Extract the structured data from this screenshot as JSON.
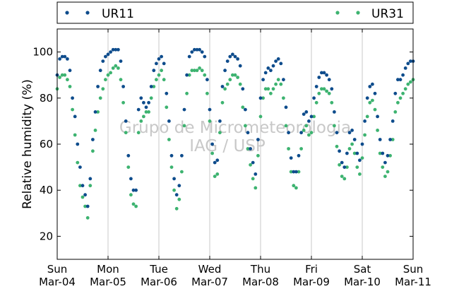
{
  "chart_data": {
    "type": "scatter",
    "ylabel": "Relative humidity (%)",
    "xlabel": "",
    "ylim": [
      10,
      110
    ],
    "xlim": [
      0,
      7
    ],
    "yticks": [
      20,
      40,
      60,
      80,
      100
    ],
    "xticks": [
      {
        "day": "Sun",
        "date": "Mar-04"
      },
      {
        "day": "Mon",
        "date": "Mar-05"
      },
      {
        "day": "Tue",
        "date": "Mar-06"
      },
      {
        "day": "Wed",
        "date": "Mar-07"
      },
      {
        "day": "Thu",
        "date": "Mar-08"
      },
      {
        "day": "Fri",
        "date": "Mar-09"
      },
      {
        "day": "Sat",
        "date": "Mar-10"
      },
      {
        "day": "Sun",
        "date": "Mar-11"
      }
    ],
    "grid": "vertical",
    "legend_placement": "top (above plot)",
    "watermark": [
      "Grupo de Micrometeorologia",
      "IAG / USP"
    ],
    "series": [
      {
        "name": "UR11",
        "color": "#0e4c8c",
        "points": [
          [
            0.0,
            90
          ],
          [
            0.05,
            97
          ],
          [
            0.1,
            98
          ],
          [
            0.15,
            98
          ],
          [
            0.2,
            97
          ],
          [
            0.25,
            92
          ],
          [
            0.3,
            80
          ],
          [
            0.35,
            72
          ],
          [
            0.4,
            60
          ],
          [
            0.45,
            50
          ],
          [
            0.5,
            42
          ],
          [
            0.55,
            38
          ],
          [
            0.6,
            33
          ],
          [
            0.65,
            45
          ],
          [
            0.7,
            62
          ],
          [
            0.75,
            74
          ],
          [
            0.8,
            85
          ],
          [
            0.85,
            92
          ],
          [
            0.9,
            96
          ],
          [
            0.95,
            98
          ],
          [
            1.0,
            99
          ],
          [
            1.05,
            100
          ],
          [
            1.1,
            101
          ],
          [
            1.15,
            101
          ],
          [
            1.2,
            101
          ],
          [
            1.25,
            96
          ],
          [
            1.3,
            85
          ],
          [
            1.35,
            70
          ],
          [
            1.4,
            55
          ],
          [
            1.45,
            45
          ],
          [
            1.5,
            40
          ],
          [
            1.55,
            40
          ],
          [
            1.6,
            75
          ],
          [
            1.65,
            80
          ],
          [
            1.7,
            78
          ],
          [
            1.75,
            76
          ],
          [
            1.8,
            78
          ],
          [
            1.85,
            85
          ],
          [
            1.9,
            92
          ],
          [
            1.95,
            95
          ],
          [
            2.0,
            97
          ],
          [
            2.05,
            98
          ],
          [
            2.1,
            95
          ],
          [
            2.15,
            82
          ],
          [
            2.2,
            70
          ],
          [
            2.25,
            55
          ],
          [
            2.3,
            45
          ],
          [
            2.35,
            38
          ],
          [
            2.4,
            42
          ],
          [
            2.45,
            55
          ],
          [
            2.5,
            75
          ],
          [
            2.55,
            90
          ],
          [
            2.6,
            98
          ],
          [
            2.65,
            100
          ],
          [
            2.7,
            101
          ],
          [
            2.75,
            101
          ],
          [
            2.8,
            101
          ],
          [
            2.85,
            100
          ],
          [
            2.9,
            98
          ],
          [
            2.95,
            88
          ],
          [
            3.0,
            75
          ],
          [
            3.05,
            60
          ],
          [
            3.1,
            52
          ],
          [
            3.15,
            53
          ],
          [
            3.2,
            70
          ],
          [
            3.25,
            85
          ],
          [
            3.3,
            92
          ],
          [
            3.35,
            96
          ],
          [
            3.4,
            98
          ],
          [
            3.45,
            99
          ],
          [
            3.5,
            98
          ],
          [
            3.55,
            97
          ],
          [
            3.6,
            94
          ],
          [
            3.65,
            84
          ],
          [
            3.7,
            75
          ],
          [
            3.75,
            65
          ],
          [
            3.8,
            58
          ],
          [
            3.85,
            52
          ],
          [
            3.9,
            47
          ],
          [
            3.95,
            62
          ],
          [
            4.0,
            80
          ],
          [
            4.05,
            88
          ],
          [
            4.1,
            91
          ],
          [
            4.15,
            93
          ],
          [
            4.2,
            92
          ],
          [
            4.25,
            94
          ],
          [
            4.3,
            96
          ],
          [
            4.35,
            97
          ],
          [
            4.4,
            95
          ],
          [
            4.45,
            88
          ],
          [
            4.5,
            76
          ],
          [
            4.55,
            65
          ],
          [
            4.6,
            54
          ],
          [
            4.65,
            48
          ],
          [
            4.7,
            48
          ],
          [
            4.75,
            55
          ],
          [
            4.8,
            65
          ],
          [
            4.85,
            73
          ],
          [
            4.9,
            74
          ],
          [
            4.95,
            70
          ],
          [
            5.0,
            72
          ],
          [
            5.05,
            80
          ],
          [
            5.1,
            85
          ],
          [
            5.15,
            89
          ],
          [
            5.2,
            91
          ],
          [
            5.25,
            91
          ],
          [
            5.3,
            90
          ],
          [
            5.35,
            88
          ],
          [
            5.4,
            84
          ],
          [
            5.45,
            74
          ],
          [
            5.5,
            65
          ],
          [
            5.55,
            57
          ],
          [
            5.6,
            52
          ],
          [
            5.65,
            50
          ],
          [
            5.7,
            56
          ],
          [
            5.75,
            65
          ],
          [
            5.8,
            66
          ],
          [
            5.85,
            62
          ],
          [
            5.9,
            56
          ],
          [
            5.95,
            53
          ],
          [
            6.0,
            60
          ],
          [
            6.05,
            70
          ],
          [
            6.1,
            80
          ],
          [
            6.15,
            85
          ],
          [
            6.2,
            86
          ],
          [
            6.25,
            82
          ],
          [
            6.3,
            72
          ],
          [
            6.35,
            62
          ],
          [
            6.4,
            56
          ],
          [
            6.45,
            52
          ],
          [
            6.5,
            55
          ],
          [
            6.55,
            62
          ],
          [
            6.6,
            70
          ],
          [
            6.65,
            82
          ],
          [
            6.7,
            88
          ],
          [
            6.75,
            88
          ],
          [
            6.8,
            90
          ],
          [
            6.85,
            93
          ],
          [
            6.9,
            95
          ],
          [
            6.95,
            96
          ],
          [
            7.0,
            96
          ]
        ]
      },
      {
        "name": "UR31",
        "color": "#3db370",
        "points": [
          [
            0.0,
            84
          ],
          [
            0.05,
            89
          ],
          [
            0.1,
            90
          ],
          [
            0.15,
            90
          ],
          [
            0.2,
            88
          ],
          [
            0.25,
            85
          ],
          [
            0.3,
            75
          ],
          [
            0.35,
            64
          ],
          [
            0.4,
            52
          ],
          [
            0.45,
            42
          ],
          [
            0.5,
            37
          ],
          [
            0.55,
            33
          ],
          [
            0.6,
            28
          ],
          [
            0.65,
            42
          ],
          [
            0.7,
            57
          ],
          [
            0.75,
            66
          ],
          [
            0.8,
            74
          ],
          [
            0.85,
            80
          ],
          [
            0.9,
            84
          ],
          [
            0.95,
            88
          ],
          [
            1.0,
            90
          ],
          [
            1.05,
            91
          ],
          [
            1.1,
            93
          ],
          [
            1.15,
            94
          ],
          [
            1.2,
            93
          ],
          [
            1.25,
            88
          ],
          [
            1.3,
            78
          ],
          [
            1.35,
            65
          ],
          [
            1.4,
            50
          ],
          [
            1.45,
            38
          ],
          [
            1.5,
            34
          ],
          [
            1.55,
            33
          ],
          [
            1.6,
            65
          ],
          [
            1.65,
            70
          ],
          [
            1.7,
            72
          ],
          [
            1.75,
            74
          ],
          [
            1.8,
            74
          ],
          [
            1.85,
            80
          ],
          [
            1.9,
            85
          ],
          [
            1.95,
            88
          ],
          [
            2.0,
            90
          ],
          [
            2.05,
            92
          ],
          [
            2.1,
            88
          ],
          [
            2.15,
            76
          ],
          [
            2.2,
            62
          ],
          [
            2.25,
            50
          ],
          [
            2.3,
            40
          ],
          [
            2.35,
            32
          ],
          [
            2.4,
            36
          ],
          [
            2.45,
            48
          ],
          [
            2.5,
            68
          ],
          [
            2.55,
            82
          ],
          [
            2.6,
            90
          ],
          [
            2.65,
            92
          ],
          [
            2.7,
            92
          ],
          [
            2.75,
            92
          ],
          [
            2.8,
            93
          ],
          [
            2.85,
            92
          ],
          [
            2.9,
            90
          ],
          [
            2.95,
            82
          ],
          [
            3.0,
            70
          ],
          [
            3.05,
            56
          ],
          [
            3.1,
            46
          ],
          [
            3.15,
            47
          ],
          [
            3.2,
            65
          ],
          [
            3.25,
            78
          ],
          [
            3.3,
            84
          ],
          [
            3.35,
            86
          ],
          [
            3.4,
            88
          ],
          [
            3.45,
            90
          ],
          [
            3.5,
            90
          ],
          [
            3.55,
            89
          ],
          [
            3.6,
            86
          ],
          [
            3.65,
            76
          ],
          [
            3.7,
            68
          ],
          [
            3.75,
            58
          ],
          [
            3.8,
            51
          ],
          [
            3.85,
            45
          ],
          [
            3.9,
            41
          ],
          [
            3.95,
            55
          ],
          [
            4.0,
            72
          ],
          [
            4.05,
            80
          ],
          [
            4.1,
            84
          ],
          [
            4.15,
            84
          ],
          [
            4.2,
            82
          ],
          [
            4.25,
            84
          ],
          [
            4.3,
            86
          ],
          [
            4.35,
            88
          ],
          [
            4.4,
            86
          ],
          [
            4.45,
            80
          ],
          [
            4.5,
            68
          ],
          [
            4.55,
            58
          ],
          [
            4.6,
            48
          ],
          [
            4.65,
            42
          ],
          [
            4.7,
            41
          ],
          [
            4.75,
            48
          ],
          [
            4.8,
            58
          ],
          [
            4.85,
            66
          ],
          [
            4.9,
            68
          ],
          [
            4.95,
            64
          ],
          [
            5.0,
            65
          ],
          [
            5.05,
            72
          ],
          [
            5.1,
            78
          ],
          [
            5.15,
            82
          ],
          [
            5.2,
            84
          ],
          [
            5.25,
            84
          ],
          [
            5.3,
            83
          ],
          [
            5.35,
            82
          ],
          [
            5.4,
            78
          ],
          [
            5.45,
            68
          ],
          [
            5.5,
            59
          ],
          [
            5.55,
            51
          ],
          [
            5.6,
            46
          ],
          [
            5.65,
            45
          ],
          [
            5.7,
            50
          ],
          [
            5.75,
            58
          ],
          [
            5.8,
            60
          ],
          [
            5.85,
            56
          ],
          [
            5.9,
            50
          ],
          [
            5.95,
            47
          ],
          [
            6.0,
            54
          ],
          [
            6.05,
            64
          ],
          [
            6.1,
            72
          ],
          [
            6.15,
            78
          ],
          [
            6.2,
            79
          ],
          [
            6.25,
            75
          ],
          [
            6.3,
            66
          ],
          [
            6.35,
            56
          ],
          [
            6.4,
            50
          ],
          [
            6.45,
            46
          ],
          [
            6.5,
            48
          ],
          [
            6.55,
            55
          ],
          [
            6.6,
            62
          ],
          [
            6.65,
            74
          ],
          [
            6.7,
            78
          ],
          [
            6.75,
            80
          ],
          [
            6.8,
            82
          ],
          [
            6.85,
            84
          ],
          [
            6.9,
            86
          ],
          [
            6.95,
            87
          ],
          [
            7.0,
            88
          ]
        ]
      }
    ]
  }
}
